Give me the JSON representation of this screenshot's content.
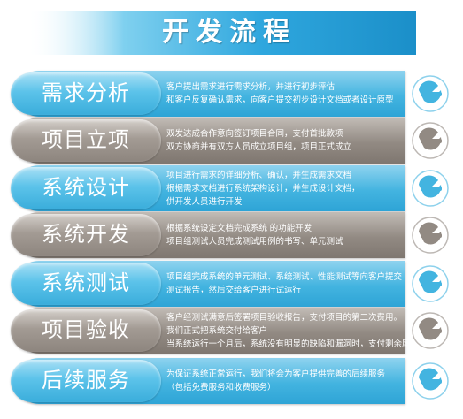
{
  "title": "开发流程",
  "colors": {
    "blue": "#43b4e0",
    "grey": "#928a83",
    "title_bg": "#3aaee0"
  },
  "steps": [
    {
      "label": "需求分析",
      "style": "blue",
      "icon": "wrench-icon",
      "lines": [
        "客户提出需求进行需求分析，并进行初步评估",
        "和客户反复确认需求，向客户提交初步设计文档或者设计原型"
      ]
    },
    {
      "label": "项目立项",
      "style": "grey",
      "icon": "wrench-icon",
      "lines": [
        "双发达成合作意向签订项目合同，支付首批款项",
        "双方协商并有双方人员成立项目组，项目正式成立"
      ]
    },
    {
      "label": "系统设计",
      "style": "blue",
      "icon": "wrench-icon",
      "lines": [
        "项目进行需求的详细分析、确认，并生成需求文档",
        "根据需求文档进行系统架构设计，并生成设计文档，",
        "供开发人员进行开发"
      ]
    },
    {
      "label": "系统开发",
      "style": "grey",
      "icon": "wrench-icon",
      "lines": [
        "根据系统设定文档完成系统 的功能开发",
        "项目组测试人员完成测试用例的书写、单元测试"
      ]
    },
    {
      "label": "系统测试",
      "style": "blue",
      "icon": "wrench-icon",
      "lines": [
        "项目组完成系统的单元测试、系统测试、性能测试等向客户提交",
        "测试报告，然后交给客户进行试运行"
      ]
    },
    {
      "label": "项目验收",
      "style": "grey",
      "icon": "wrench-icon",
      "lines": [
        "客户经测试满意后签署项目验收报告，支付项目的第二次费用。",
        "我们正式把系统交付给客户",
        "当系统运行一个月后，系统没有明显的缺陷和漏洞时，支付剩余尾款"
      ]
    },
    {
      "label": "后续服务",
      "style": "blue",
      "icon": "wrench-icon",
      "lines": [
        "为保证系统正常运行，我们将会为客户提供完善的后续服务",
        "（包括免费服务和收费服务）"
      ]
    }
  ]
}
